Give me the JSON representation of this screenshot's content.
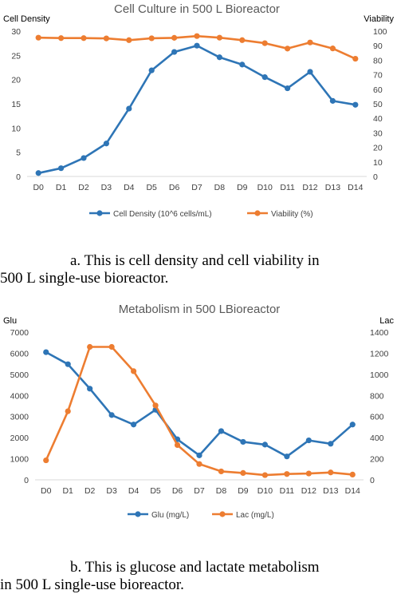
{
  "chart_data": [
    {
      "type": "line",
      "title": "Cell Culture in 500 L Bioreactor",
      "ylabel": "Cell Density",
      "y2label": "Viability",
      "categories": [
        "D0",
        "D1",
        "D2",
        "D3",
        "D4",
        "D5",
        "D6",
        "D7",
        "D8",
        "D9",
        "D10",
        "D11",
        "D12",
        "D13",
        "D14"
      ],
      "ylim": [
        0,
        30
      ],
      "y2lim": [
        0,
        100
      ],
      "yticks": [
        0,
        5,
        10,
        15,
        20,
        25,
        30
      ],
      "y2ticks": [
        0,
        10,
        20,
        30,
        40,
        50,
        60,
        70,
        80,
        90,
        100
      ],
      "grid": false,
      "legend": "bottom",
      "series": [
        {
          "name": "Cell Density (10^6 cells/mL)",
          "axis": "left",
          "color": "#2e75b6",
          "values": [
            0.7,
            1.7,
            3.8,
            6.8,
            14.0,
            21.9,
            25.7,
            27.0,
            24.6,
            23.1,
            20.5,
            18.2,
            21.6,
            15.6,
            14.8
          ]
        },
        {
          "name": "Viability (%)",
          "axis": "right",
          "color": "#ed7d31",
          "values": [
            95.5,
            95.2,
            95.2,
            95.0,
            93.8,
            95.1,
            95.4,
            96.6,
            95.5,
            93.8,
            91.7,
            88.0,
            92.2,
            88.1,
            81.0
          ]
        }
      ]
    },
    {
      "type": "line",
      "title": "Metabolism in 500 LBioreactor",
      "ylabel": "Glu",
      "y2label": "Lac",
      "categories": [
        "D0",
        "D1",
        "D2",
        "D3",
        "D4",
        "D5",
        "D6",
        "D7",
        "D8",
        "D9",
        "D10",
        "D11",
        "D12",
        "D13",
        "D14"
      ],
      "ylim": [
        0,
        7000
      ],
      "y2lim": [
        0,
        1400
      ],
      "yticks": [
        0,
        1000,
        2000,
        3000,
        4000,
        5000,
        6000,
        7000
      ],
      "y2ticks": [
        0,
        200,
        400,
        600,
        800,
        1000,
        1200,
        1400
      ],
      "grid": false,
      "legend": "bottom",
      "series": [
        {
          "name": "Glu (mg/L)",
          "axis": "left",
          "color": "#2e75b6",
          "values": [
            6050,
            5480,
            4320,
            3070,
            2620,
            3320,
            1920,
            1160,
            2310,
            1800,
            1670,
            1110,
            1870,
            1710,
            2620
          ]
        },
        {
          "name": "Lac (mg/L)",
          "axis": "right",
          "color": "#ed7d31",
          "values": [
            185,
            650,
            1260,
            1260,
            1030,
            705,
            330,
            150,
            80,
            65,
            45,
            55,
            60,
            70,
            50
          ]
        }
      ]
    }
  ],
  "captions": [
    {
      "line1": "a. This is cell density and cell viability in",
      "line2": "500 L single-use bioreactor."
    },
    {
      "line1": "b. This is glucose and lactate metabolism",
      "line2": "in 500 L single-use bioreactor."
    }
  ]
}
